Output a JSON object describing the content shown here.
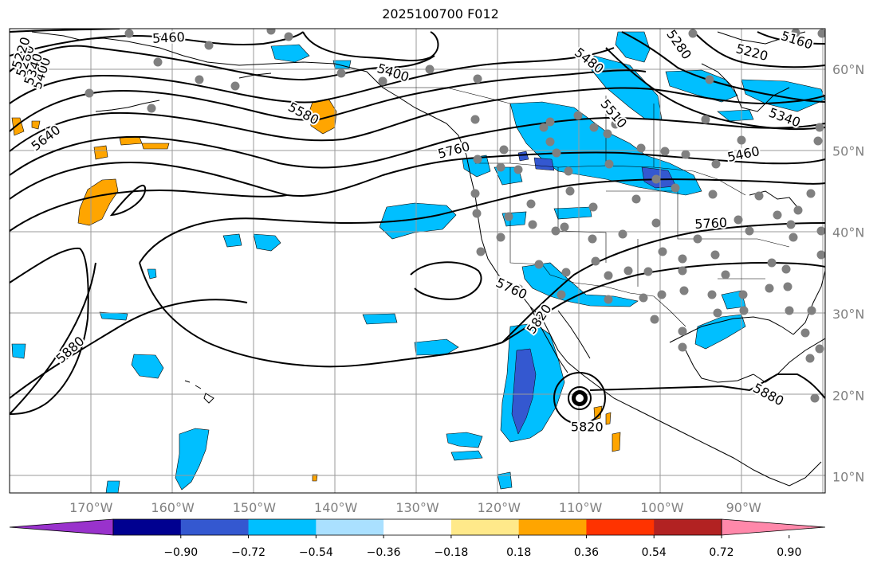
{
  "title": "2025100700 F012",
  "lon_axis": {
    "labels": [
      "170°W",
      "160°W",
      "150°W",
      "140°W",
      "130°W",
      "120°W",
      "110°W",
      "100°W",
      "90°W"
    ],
    "values": [
      -170,
      -160,
      -150,
      -140,
      -130,
      -120,
      -110,
      -100,
      -90
    ],
    "range": [
      -180,
      -80
    ]
  },
  "lat_axis": {
    "labels": [
      "10°N",
      "20°N",
      "30°N",
      "40°N",
      "50°N",
      "60°N"
    ],
    "values": [
      10,
      20,
      30,
      40,
      50,
      60
    ],
    "range": [
      8,
      65
    ]
  },
  "contour_labels": [
    {
      "text": "5460",
      "lon": -160.5,
      "lat": 63.8,
      "rot": -3
    },
    {
      "text": "5400",
      "lon": -176,
      "lat": 59.5,
      "rot": -72
    },
    {
      "text": "5340",
      "lon": -177,
      "lat": 60,
      "rot": -72
    },
    {
      "text": "5280",
      "lon": -178,
      "lat": 61,
      "rot": -72
    },
    {
      "text": "5220",
      "lon": -178.5,
      "lat": 62,
      "rot": -72
    },
    {
      "text": "5400",
      "lon": -133,
      "lat": 59.5,
      "rot": 18
    },
    {
      "text": "5580",
      "lon": -144,
      "lat": 54.5,
      "rot": 28
    },
    {
      "text": "5640",
      "lon": -175.5,
      "lat": 51.5,
      "rot": -38
    },
    {
      "text": "5760",
      "lon": -125.5,
      "lat": 50,
      "rot": -15
    },
    {
      "text": "5760",
      "lon": -118.5,
      "lat": 33,
      "rot": 25
    },
    {
      "text": "5760",
      "lon": -94,
      "lat": 41,
      "rot": -3
    },
    {
      "text": "5820",
      "lon": -115,
      "lat": 29.3,
      "rot": -55
    },
    {
      "text": "5820",
      "lon": -109.2,
      "lat": 16,
      "rot": 0
    },
    {
      "text": "5880",
      "lon": -172.5,
      "lat": 25.5,
      "rot": -42
    },
    {
      "text": "5880",
      "lon": -87,
      "lat": 20,
      "rot": 28
    },
    {
      "text": "5480",
      "lon": -109,
      "lat": 61,
      "rot": 38
    },
    {
      "text": "5510",
      "lon": -106,
      "lat": 54.5,
      "rot": 50
    },
    {
      "text": "5280",
      "lon": -98,
      "lat": 63,
      "rot": 55
    },
    {
      "text": "5220",
      "lon": -89,
      "lat": 62,
      "rot": 15
    },
    {
      "text": "5160",
      "lon": -83.5,
      "lat": 63.5,
      "rot": 18
    },
    {
      "text": "5340",
      "lon": -85,
      "lat": 54,
      "rot": 20
    },
    {
      "text": "5460",
      "lon": -90,
      "lat": 49.5,
      "rot": -12
    }
  ],
  "colorbar": {
    "tick_labels": [
      "−0.90",
      "−0.72",
      "−0.54",
      "−0.36",
      "−0.18",
      "0.18",
      "0.36",
      "0.54",
      "0.72",
      "0.90"
    ],
    "colors": [
      "#9932cc",
      "#000090",
      "#3458d0",
      "#00bfff",
      "#aae0ff",
      "#ffffff",
      "#ffe98a",
      "#ffa500",
      "#ff3300",
      "#b22222",
      "#ff88aa"
    ]
  },
  "grid": true
}
